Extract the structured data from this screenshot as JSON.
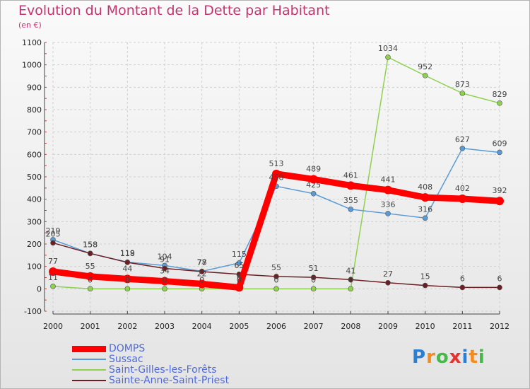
{
  "title": "Evolution du Montant de la Dette par Habitant",
  "subtitle": "(en €)",
  "logo": {
    "letters": [
      "P",
      "r",
      "o",
      "x",
      "i",
      "t",
      "i"
    ],
    "colors": [
      "#2a7fd4",
      "#f28c1e",
      "#49b84a",
      "#e6312f",
      "#2a7fd4",
      "#f28c1e",
      "#49b84a"
    ]
  },
  "chart_data": {
    "type": "line",
    "x": [
      "2000",
      "2001",
      "2002",
      "2003",
      "2004",
      "2005",
      "2006",
      "2007",
      "2008",
      "2009",
      "2010",
      "2011",
      "2012"
    ],
    "ylim": [
      -100,
      1100
    ],
    "yticks": [
      "-100",
      "0",
      "100",
      "200",
      "300",
      "400",
      "500",
      "600",
      "700",
      "800",
      "900",
      "1000",
      "1100"
    ],
    "grid": true,
    "legend_position": "bottom-left",
    "series": [
      {
        "name": "DOMPS",
        "color": "#ff0000",
        "values": [
          77,
          55,
          44,
          34,
          22,
          6,
          513,
          489,
          461,
          441,
          408,
          402,
          392
        ],
        "labels": [
          "77",
          "55",
          "44",
          "34",
          "22",
          "6",
          "513",
          "489",
          "461",
          "441",
          "408",
          "402",
          "392"
        ]
      },
      {
        "name": "Sussac",
        "color": "#5b9bd5",
        "values": [
          219,
          158,
          119,
          104,
          78,
          115,
          458,
          425,
          355,
          336,
          316,
          627,
          609
        ],
        "labels": [
          "219",
          "158",
          "119",
          "104",
          "78",
          "115",
          "458",
          "425",
          "355",
          "336",
          "316",
          "627",
          "609"
        ]
      },
      {
        "name": "Saint-Gilles-les-Forêts",
        "color": "#8fd14f",
        "values": [
          11,
          0,
          0,
          0,
          0,
          0,
          0,
          0,
          0,
          1034,
          952,
          873,
          829
        ],
        "labels": [
          "11",
          "0",
          "0",
          "0",
          "0",
          "0",
          "0",
          "0",
          "0",
          "1034",
          "952",
          "873",
          "829"
        ]
      },
      {
        "name": "Sainte-Anne-Saint-Priest",
        "color": "#6b1f24",
        "values": [
          205,
          158,
          118,
          91,
          77,
          65,
          55,
          51,
          41,
          27,
          15,
          6,
          6
        ],
        "labels": [
          "205",
          "158",
          "118",
          "91",
          "77",
          "65",
          "55",
          "51",
          "41",
          "27",
          "15",
          "6",
          "6"
        ]
      }
    ]
  }
}
